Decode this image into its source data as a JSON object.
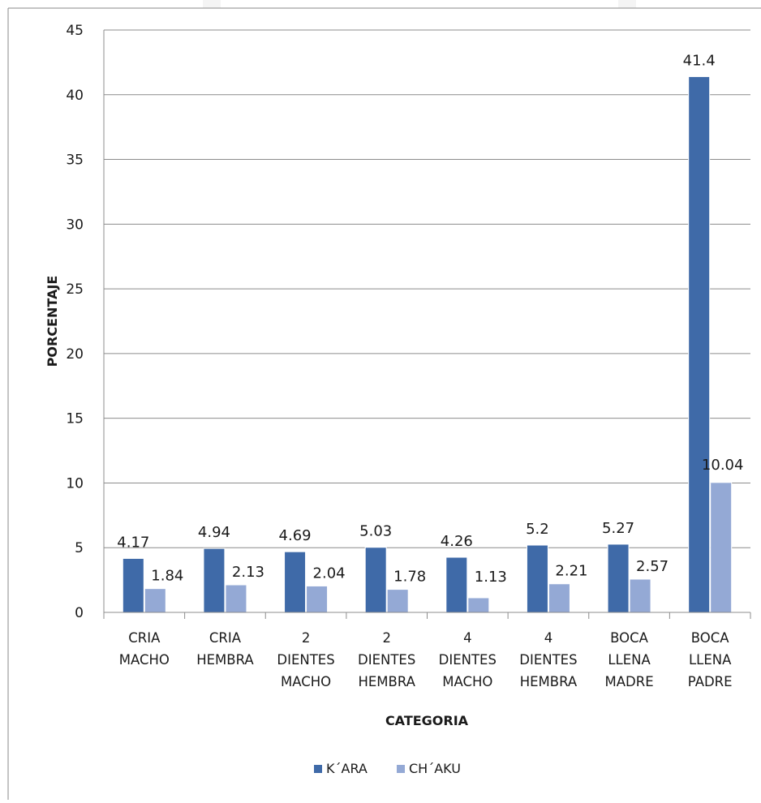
{
  "chart_data": {
    "type": "bar",
    "title": "",
    "xlabel": "CATEGORIA",
    "ylabel": "PORCENTAJE",
    "ylim": [
      0,
      45
    ],
    "yticks": [
      0,
      5,
      10,
      15,
      20,
      25,
      30,
      35,
      40,
      45
    ],
    "grid": true,
    "legend_position": "bottom",
    "categories": [
      [
        "CRIA",
        "MACHO"
      ],
      [
        "CRIA",
        "HEMBRA"
      ],
      [
        "2",
        "DIENTES",
        "MACHO"
      ],
      [
        "2",
        "DIENTES",
        "HEMBRA"
      ],
      [
        "4",
        "DIENTES",
        "MACHO"
      ],
      [
        "4",
        "DIENTES",
        "HEMBRA"
      ],
      [
        "BOCA",
        "LLENA",
        "MADRE"
      ],
      [
        "BOCA",
        "LLENA",
        "PADRE"
      ]
    ],
    "series": [
      {
        "name": "K´ARA",
        "color": "#3f6aa8",
        "values": [
          4.17,
          4.94,
          4.69,
          5.03,
          4.26,
          5.2,
          5.27,
          41.4
        ]
      },
      {
        "name": "CH´AKU",
        "color": "#94a9d5",
        "values": [
          1.84,
          2.13,
          2.04,
          1.78,
          1.13,
          2.21,
          2.57,
          10.04
        ]
      }
    ]
  }
}
